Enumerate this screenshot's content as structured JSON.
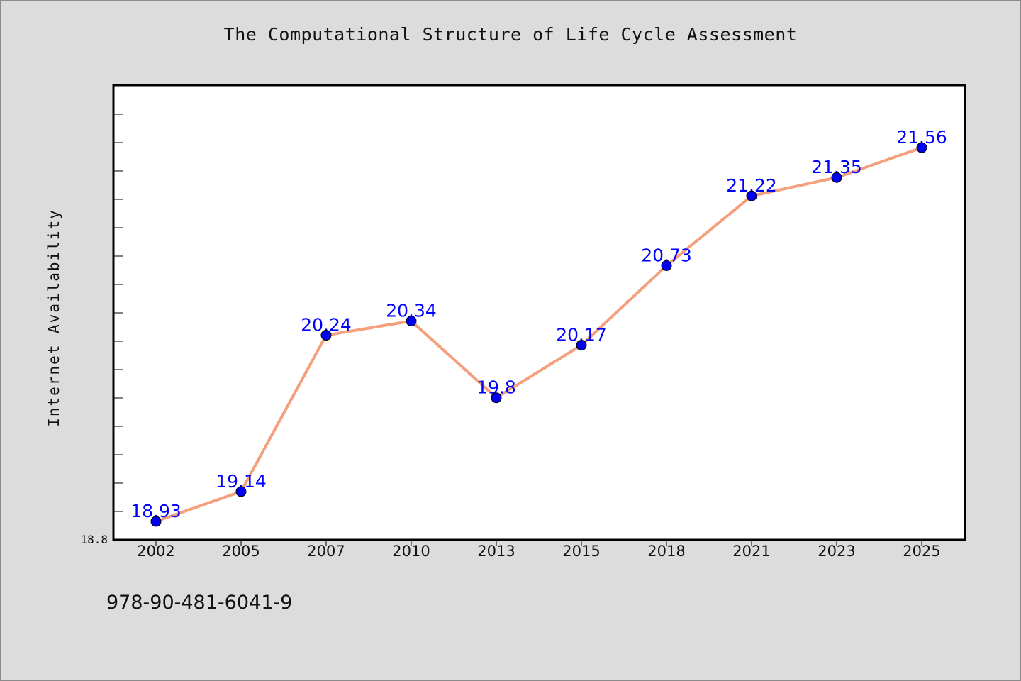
{
  "chart_data": {
    "type": "line",
    "title": "The Computational Structure of Life Cycle Assessment",
    "xlabel": "",
    "ylabel": "Internet Availability",
    "categories": [
      "2002",
      "2005",
      "2007",
      "2010",
      "2013",
      "2015",
      "2018",
      "2021",
      "2023",
      "2025"
    ],
    "series": [
      {
        "values": [
          18.93,
          19.14,
          20.24,
          20.34,
          19.8,
          20.17,
          20.73,
          21.22,
          21.35,
          21.56
        ]
      }
    ],
    "data_labels": [
      "18.93",
      "19.14",
      "20.24",
      "20.34",
      "19.8",
      "20.17",
      "20.73",
      "21.22",
      "21.35",
      "21.56"
    ],
    "ylim": [
      18.8,
      22.0
    ],
    "y_tick_labels": [
      "18.8"
    ],
    "grid": false,
    "legend": "none",
    "colors": {
      "line": "#f4a07c",
      "marker": "#0000ee",
      "label": "#0000ff",
      "background": "#dcdcdc",
      "plot_area": "#ffffff"
    }
  },
  "footer": {
    "isbn": "978-90-481-6041-9"
  }
}
